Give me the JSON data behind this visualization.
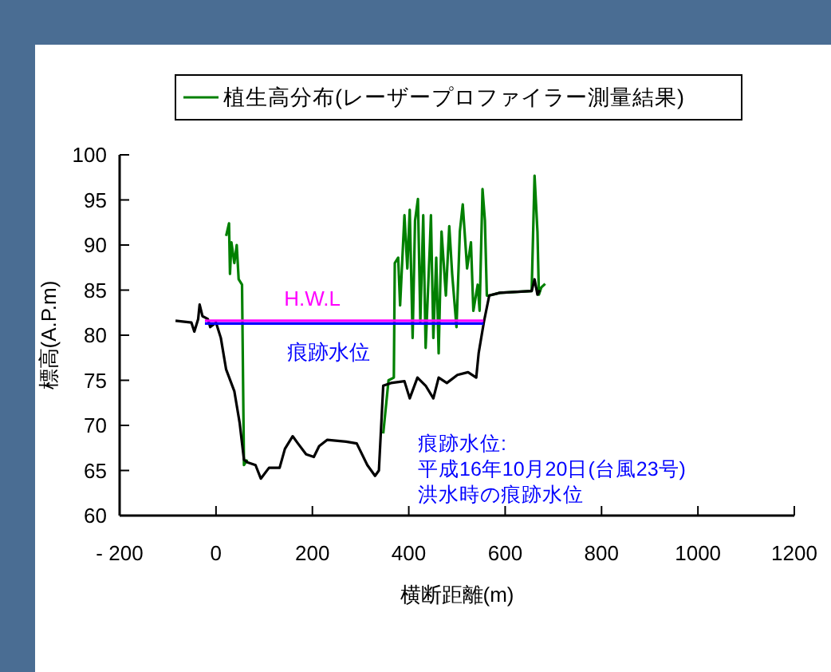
{
  "chart_data": {
    "type": "line",
    "xlabel": "横断距離(m)",
    "ylabel": "標高(A.P.m)",
    "xlim": [
      -200,
      1200
    ],
    "xticks": [
      -200,
      0,
      200,
      400,
      600,
      800,
      1000,
      1200
    ],
    "ylim": [
      60,
      100
    ],
    "yticks": [
      60,
      65,
      70,
      75,
      80,
      85,
      90,
      95,
      100
    ],
    "grid": false,
    "legend": "top",
    "marker": "none",
    "line_style": "solid",
    "series": [
      {
        "name": "植生高分布(レーザープロファイラー測量結果)",
        "color": "#008000",
        "x": [
          21,
          27,
          29,
          32,
          38,
          43,
          47,
          54,
          58,
          65,
          200,
          347,
          358,
          369,
          371,
          378,
          382,
          391,
          397,
          402,
          408,
          413,
          419,
          424,
          430,
          435,
          444,
          446,
          451,
          457,
          462,
          468,
          477,
          484,
          490,
          499,
          506,
          512,
          521,
          529,
          534,
          543,
          547,
          553,
          558,
          562,
          567,
          589,
          655,
          661,
          667,
          670,
          675,
          683
        ],
        "values": [
          91,
          92.4,
          86.8,
          90.3,
          88,
          90,
          86.2,
          85.6,
          65.6,
          66.2,
          null,
          69.1,
          75,
          75.3,
          88,
          88.6,
          83.3,
          93.3,
          87.4,
          93.9,
          79.7,
          92.7,
          95.1,
          81.5,
          93.3,
          78.6,
          90.3,
          93.3,
          79.7,
          88.6,
          78,
          91.5,
          84.4,
          92.1,
          86.8,
          80.9,
          91.5,
          94.5,
          87.4,
          90.3,
          82.7,
          85.6,
          82.7,
          96.2,
          92.7,
          84.4,
          84.4,
          84.7,
          84.9,
          97.7,
          91.5,
          84.5,
          85.3,
          85.7
        ]
      },
      {
        "color": "#000000",
        "x": [
          -84,
          -51,
          -45,
          -37,
          -34,
          -28,
          -17,
          -12,
          0,
          10,
          21,
          38,
          49,
          58,
          65,
          82,
          93,
          110,
          132,
          143,
          159,
          170,
          187,
          203,
          214,
          231,
          270,
          292,
          314,
          330,
          338,
          347,
          363,
          391,
          402,
          418,
          435,
          451,
          462,
          479,
          501,
          523,
          540,
          545,
          556,
          567,
          589,
          655,
          661,
          667,
          672
        ],
        "values": [
          81.6,
          81.4,
          80.4,
          81.8,
          83.4,
          82.1,
          81.8,
          80.9,
          81.4,
          79.7,
          76.2,
          73.8,
          70.3,
          66.2,
          65.9,
          65.6,
          64.1,
          65.3,
          65.3,
          67.4,
          68.8,
          68,
          66.8,
          66.5,
          67.7,
          68.4,
          68.2,
          68,
          65.6,
          64.4,
          65,
          74.4,
          74.7,
          74.9,
          73,
          75.3,
          74.4,
          73,
          75.3,
          74.7,
          75.6,
          75.9,
          75.3,
          78,
          81.5,
          84.4,
          84.7,
          84.9,
          86.2,
          84.5,
          85
        ]
      },
      {
        "color": "#ff00ff",
        "x": [
          -23,
          555
        ],
        "values": [
          81.6,
          81.6
        ]
      },
      {
        "color": "#0000ff",
        "x": [
          -23,
          555
        ],
        "values": [
          81.3,
          81.3
        ]
      }
    ],
    "annotations": [
      "H.W.L",
      "痕跡水位",
      "痕跡水位:\n平成16年10月20日(台風23号)\n洪水時の痕跡水位"
    ]
  }
}
